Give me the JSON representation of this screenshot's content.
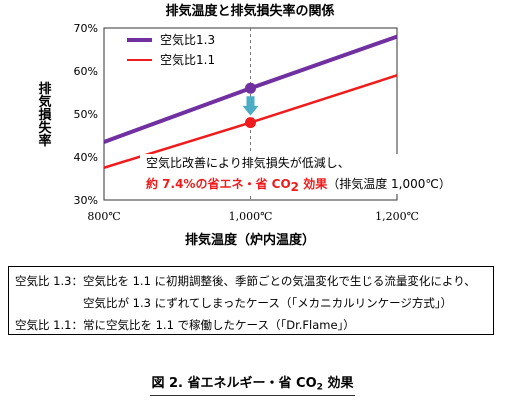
{
  "chart_data": {
    "type": "line",
    "title": "排気温度と排気損失率の関係",
    "xlabel": "排気温度（炉内温度）",
    "ylabel": "排気損失率",
    "xlim": [
      800,
      1200
    ],
    "ylim": [
      30,
      70
    ],
    "x_ticks": [
      800,
      1000,
      1200
    ],
    "x_tick_labels": [
      "800℃",
      "1,000℃",
      "1,200℃"
    ],
    "y_ticks": [
      30,
      40,
      50,
      60,
      70
    ],
    "y_tick_labels": [
      "30%",
      "40%",
      "50%",
      "60%",
      "70%"
    ],
    "grid": "dashed vertical line at 1,000℃",
    "legend_position": "top-left",
    "series": [
      {
        "name": "空気比1.3",
        "color": "#7030a0",
        "x": [
          800,
          1000,
          1200
        ],
        "y": [
          43.5,
          56,
          68
        ]
      },
      {
        "name": "空気比1.1",
        "color": "#ee1c1c",
        "x": [
          800,
          1000,
          1200
        ],
        "y": [
          37.5,
          48,
          59
        ]
      }
    ],
    "highlight_points": [
      {
        "series": "空気比1.3",
        "x": 1000,
        "y": 56,
        "color": "#7030a0"
      },
      {
        "series": "空気比1.1",
        "x": 1000,
        "y": 48,
        "color": "#ee1c1c"
      }
    ],
    "arrow_color": "#4bacc6",
    "annotation_line1": "空気比改善により排気損失が低減し、",
    "annotation_line2_red": "約 7.4%の省エネ・省 CO",
    "annotation_line2_sub": "2",
    "annotation_line2_red_tail": " 効果",
    "annotation_line2_note": "（排気温度 1,000℃）"
  },
  "notes": {
    "line1": "空気比 1.3：空気比を 1.1 に初期調整後、季節ごとの気温変化で生じる流量変化により、",
    "line2": "空気比が 1.3 にずれてしまったケース（「メカニカルリンケージ方式」）",
    "line3": "空気比 1.1：常に空気比を 1.1 で稼働したケース（「Dr.Flame」）"
  },
  "caption": {
    "prefix": "図 2.  省エネルギー・省 CO",
    "sub": "2",
    "suffix": " 効果"
  }
}
